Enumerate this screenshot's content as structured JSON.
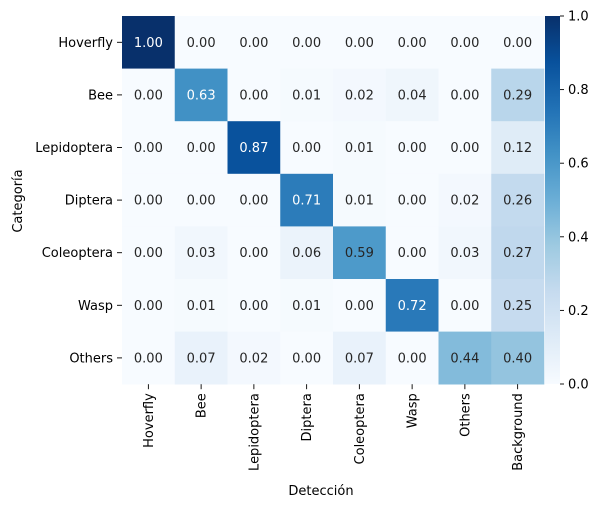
{
  "chart_data": {
    "type": "heatmap",
    "title": "",
    "xlabel": "Detección",
    "ylabel": "Categoría",
    "rows": [
      "Hoverfly",
      "Bee",
      "Lepidoptera",
      "Diptera",
      "Coleoptera",
      "Wasp",
      "Others"
    ],
    "columns": [
      "Hoverfly",
      "Bee",
      "Lepidoptera",
      "Diptera",
      "Coleoptera",
      "Wasp",
      "Others",
      "Background"
    ],
    "values": [
      [
        1.0,
        0.0,
        0.0,
        0.0,
        0.0,
        0.0,
        0.0,
        0.0
      ],
      [
        0.0,
        0.63,
        0.0,
        0.01,
        0.02,
        0.04,
        0.0,
        0.29
      ],
      [
        0.0,
        0.0,
        0.87,
        0.0,
        0.01,
        0.0,
        0.0,
        0.12
      ],
      [
        0.0,
        0.0,
        0.0,
        0.71,
        0.01,
        0.0,
        0.02,
        0.26
      ],
      [
        0.0,
        0.03,
        0.0,
        0.06,
        0.59,
        0.0,
        0.03,
        0.27
      ],
      [
        0.0,
        0.01,
        0.0,
        0.01,
        0.0,
        0.72,
        0.0,
        0.25
      ],
      [
        0.0,
        0.07,
        0.02,
        0.0,
        0.07,
        0.0,
        0.44,
        0.4
      ]
    ],
    "colorbar": {
      "range": [
        0.0,
        1.0
      ],
      "ticks": [
        "0.0",
        "0.2",
        "0.4",
        "0.6",
        "0.8",
        "1.0"
      ],
      "colormap": "Blues"
    },
    "value_format": "2 decimals"
  }
}
